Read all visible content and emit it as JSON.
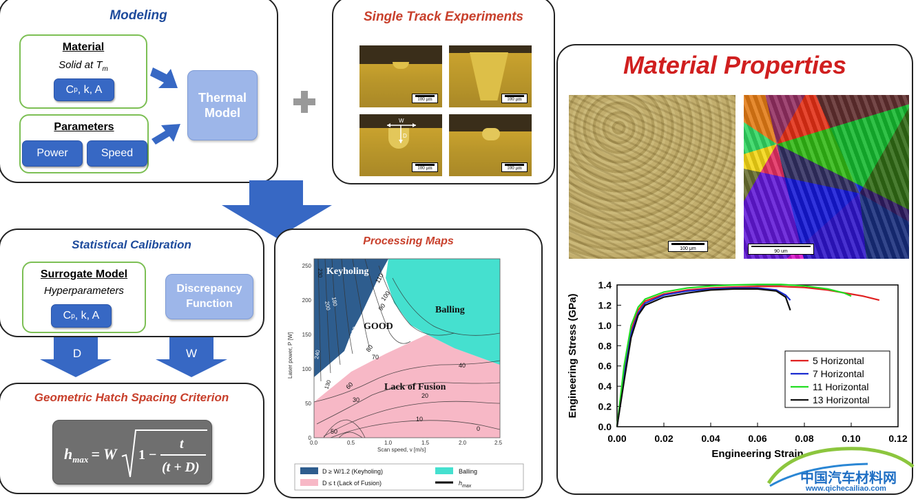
{
  "modeling": {
    "title": "Modeling",
    "material_heading": "Material",
    "material_sub": "Solid at T",
    "material_sub_subscript": "m",
    "material_params_label": "C",
    "material_params_sub": "p",
    "material_params_rest": ", k, A",
    "parameters_heading": "Parameters",
    "power_label": "Power",
    "speed_label": "Speed",
    "thermal_model_label": "Thermal Model"
  },
  "single_track": {
    "title": "Single Track Experiments",
    "scale_bar": "100 μm",
    "width_label": "W",
    "depth_label": "D"
  },
  "material_properties": {
    "title": "Material Properties",
    "micro_scale_1": "100 μm",
    "micro_scale_2": "90 um"
  },
  "statistical_calibration": {
    "title": "Statistical Calibration",
    "surrogate_heading": "Surrogate Model",
    "surrogate_sub": "Hyperparameters",
    "params_label": "C",
    "params_sub": "p",
    "params_rest": ", k, A",
    "discrepancy_label": "Discrepancy Function",
    "arrow_d": "D",
    "arrow_w": "W"
  },
  "hatch": {
    "title": "Geometric Hatch Spacing Criterion",
    "formula_lhs": "h",
    "formula_lhs_sub": "max",
    "formula_eq": "= W",
    "formula_one": "1 −",
    "formula_num": "t",
    "formula_den": "(t + D)"
  },
  "processing_map": {
    "title": "Processing Maps",
    "xlabel": "Scan speed, v [m/s]",
    "ylabel": "Laser power, P [W]",
    "region_keyholing": "Keyholing",
    "region_good": "GOOD",
    "region_balling": "Balling",
    "region_lof": "Lack of Fusion",
    "xticks": [
      "0.0",
      "0.5",
      "1.0",
      "1.5",
      "2.0",
      "2.5"
    ],
    "yticks": [
      "0",
      "50",
      "100",
      "150",
      "200",
      "250"
    ],
    "contour_labels": [
      "230",
      "110",
      "100",
      "90",
      "80",
      "70",
      "60",
      "50",
      "40",
      "30",
      "20",
      "10",
      "0",
      "130",
      "120",
      "180",
      "200",
      "240"
    ],
    "legend": {
      "keyholing": "D ≥ W/1.2 (Keyholing)",
      "balling": "Balling",
      "lof": "D ≤ t (Lack of Fusion)",
      "hmax": "h",
      "hmax_sub": "max"
    },
    "colors": {
      "keyholing": "#2e5d8e",
      "balling": "#45e0cf",
      "lof": "#f7b8c6",
      "good": "#ffffff"
    }
  },
  "chart_data": {
    "type": "line",
    "xlabel": "Engineering Strain",
    "ylabel": "Engineering Stress (GPa)",
    "xlim": [
      0,
      0.12
    ],
    "ylim": [
      0,
      1.4
    ],
    "xticks": [
      "0.00",
      "0.02",
      "0.04",
      "0.06",
      "0.08",
      "0.10",
      "0.12"
    ],
    "yticks": [
      "0.0",
      "0.2",
      "0.4",
      "0.6",
      "0.8",
      "1.0",
      "1.2",
      "1.4"
    ],
    "legend_position": "bottom-right",
    "series": [
      {
        "name": "5 Horizontal",
        "color": "#e02020",
        "x": [
          0,
          0.003,
          0.006,
          0.009,
          0.012,
          0.02,
          0.03,
          0.04,
          0.05,
          0.06,
          0.07,
          0.08,
          0.09,
          0.1,
          0.105,
          0.112
        ],
        "y": [
          0,
          0.55,
          0.95,
          1.15,
          1.24,
          1.31,
          1.35,
          1.37,
          1.38,
          1.385,
          1.385,
          1.375,
          1.35,
          1.31,
          1.29,
          1.25
        ]
      },
      {
        "name": "7 Horizontal",
        "color": "#1a2bd0",
        "x": [
          0,
          0.003,
          0.006,
          0.009,
          0.012,
          0.02,
          0.03,
          0.04,
          0.05,
          0.06,
          0.068,
          0.072,
          0.074
        ],
        "y": [
          0,
          0.5,
          0.92,
          1.12,
          1.22,
          1.3,
          1.34,
          1.36,
          1.37,
          1.37,
          1.35,
          1.3,
          1.25
        ]
      },
      {
        "name": "11 Horizontal",
        "color": "#22dd22",
        "x": [
          0,
          0.003,
          0.006,
          0.009,
          0.012,
          0.02,
          0.03,
          0.04,
          0.05,
          0.06,
          0.07,
          0.08,
          0.09,
          0.097,
          0.1
        ],
        "y": [
          0,
          0.6,
          1.0,
          1.18,
          1.26,
          1.33,
          1.37,
          1.39,
          1.4,
          1.405,
          1.405,
          1.39,
          1.36,
          1.32,
          1.29
        ]
      },
      {
        "name": "13 Horizontal",
        "color": "#111111",
        "x": [
          0,
          0.003,
          0.006,
          0.009,
          0.012,
          0.02,
          0.03,
          0.04,
          0.05,
          0.06,
          0.068,
          0.072,
          0.074
        ],
        "y": [
          0,
          0.45,
          0.88,
          1.1,
          1.2,
          1.28,
          1.32,
          1.35,
          1.36,
          1.36,
          1.34,
          1.28,
          1.15
        ]
      }
    ]
  },
  "watermark": {
    "brand": "中国汽车材料网",
    "url": "www.qichecailiao.com"
  }
}
